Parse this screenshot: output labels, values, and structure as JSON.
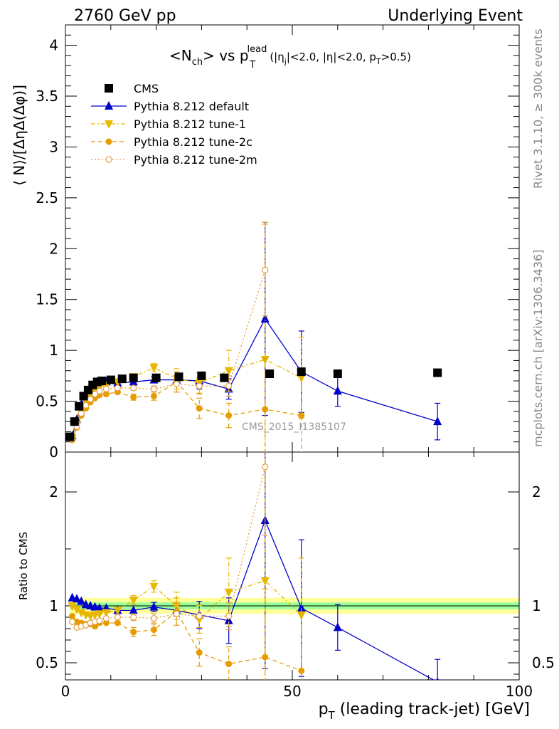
{
  "header": {
    "left": "2760 GeV pp",
    "right": "Underlying Event"
  },
  "top_title": {
    "main": "<N",
    "sub1": "ch",
    "mid": "> vs p",
    "sup": "lead",
    "sub2": "T",
    "cuts": "(|η",
    "cuts_sub1": "j",
    "cuts_mid": "|<2.0, |η|<2.0, p",
    "cuts_sub2": "T",
    "cuts_end": ">0.5)"
  },
  "y_label_main": "⟨ N⟩/[ΔηΔ(Δφ)]",
  "y_label_ratio": "Ratio to CMS",
  "x_label": {
    "main": "p",
    "sub": "T",
    "rest": " (leading track-jet) [GeV]"
  },
  "side_text_top": "Rivet 3.1.10, ≥ 300k events",
  "side_text_bottom": "mcplots.cern.ch [arXiv:1306.3436]",
  "watermark": "CMS_2015_I1385107",
  "legend": [
    "CMS",
    "Pythia 8.212 default",
    "Pythia 8.212 tune-1",
    "Pythia 8.212 tune-2c",
    "Pythia 8.212 tune-2m"
  ],
  "colors": {
    "data": "#000000",
    "default": "#0000cc",
    "tune1": "#e6b800",
    "tune2c": "#e69c00",
    "tune2m": "#e69c3c",
    "band_inner": "#99ff99",
    "band_outer": "#ffff99"
  },
  "chart_data": [
    {
      "type": "scatter",
      "xlim": [
        0,
        100
      ],
      "ylim": [
        0,
        4.2
      ],
      "x_ticks": [
        0,
        50,
        100
      ],
      "y_ticks": [
        0,
        0.5,
        1,
        1.5,
        2,
        2.5,
        3,
        3.5,
        4
      ],
      "y_tick_labels": [
        "0",
        "0.5",
        "1",
        "1.5",
        "2",
        "2.5",
        "3",
        "3.5",
        "4"
      ],
      "series": [
        {
          "name": "CMS",
          "marker": "square",
          "x": [
            1,
            2,
            3,
            4,
            5,
            6,
            7,
            8,
            10,
            12.5,
            15,
            20,
            25,
            30,
            35,
            45,
            52,
            60,
            82
          ],
          "y": [
            0.15,
            0.3,
            0.45,
            0.55,
            0.61,
            0.66,
            0.69,
            0.7,
            0.71,
            0.72,
            0.73,
            0.73,
            0.74,
            0.75,
            0.73,
            0.77,
            0.79,
            0.77,
            0.78
          ]
        },
        {
          "name": "Pythia 8.212 default",
          "marker": "triangle-up",
          "x": [
            1.5,
            2.5,
            3.5,
            4.5,
            5.5,
            6.5,
            7.5,
            9,
            11.5,
            15,
            19.5,
            24.5,
            29.5,
            36,
            44,
            52,
            60,
            82
          ],
          "y": [
            0.16,
            0.32,
            0.47,
            0.55,
            0.62,
            0.66,
            0.68,
            0.69,
            0.68,
            0.69,
            0.71,
            0.71,
            0.7,
            0.62,
            1.31,
            0.79,
            0.6,
            0.3
          ],
          "yerr": [
            0,
            0,
            0,
            0,
            0,
            0,
            0,
            0,
            0,
            0,
            0.03,
            0.03,
            0.08,
            0.1,
            0.95,
            0.4,
            0.15,
            0.18
          ]
        },
        {
          "name": "Pythia 8.212 tune-1",
          "marker": "triangle-down",
          "x": [
            1.5,
            2.5,
            3.5,
            4.5,
            5.5,
            6.5,
            7.5,
            9,
            11.5,
            15,
            19.5,
            24.5,
            29.5,
            36,
            44,
            52
          ],
          "y": [
            0.14,
            0.27,
            0.4,
            0.5,
            0.56,
            0.6,
            0.64,
            0.66,
            0.69,
            0.74,
            0.83,
            0.72,
            0.68,
            0.8,
            0.91,
            0.73
          ],
          "yerr": [
            0,
            0,
            0,
            0,
            0,
            0,
            0,
            0,
            0,
            0.03,
            0.04,
            0.1,
            0.1,
            0.2,
            1.35,
            0.4
          ]
        },
        {
          "name": "Pythia 8.212 tune-2c",
          "marker": "circle",
          "x": [
            1.5,
            2.5,
            3.5,
            4.5,
            5.5,
            6.5,
            7.5,
            9,
            11.5,
            15,
            19.5,
            24.5,
            29.5,
            36,
            44,
            52
          ],
          "y": [
            0.12,
            0.24,
            0.36,
            0.43,
            0.49,
            0.53,
            0.56,
            0.57,
            0.59,
            0.54,
            0.55,
            0.69,
            0.43,
            0.36,
            0.42,
            0.36
          ],
          "yerr": [
            0,
            0,
            0,
            0,
            0,
            0,
            0,
            0,
            0,
            0.03,
            0.04,
            0.1,
            0.1,
            0.12,
            0.5,
            0.4
          ]
        },
        {
          "name": "Pythia 8.212 tune-2m",
          "marker": "circle-open",
          "x": [
            1.5,
            2.5,
            3.5,
            4.5,
            5.5,
            6.5,
            7.5,
            9,
            11.5,
            15,
            19.5,
            24.5,
            29.5,
            36,
            44
          ],
          "y": [
            0.13,
            0.25,
            0.38,
            0.46,
            0.52,
            0.57,
            0.6,
            0.62,
            0.63,
            0.63,
            0.62,
            0.67,
            0.65,
            0.65,
            1.79
          ],
          "yerr": [
            0,
            0,
            0,
            0,
            0,
            0,
            0,
            0,
            0,
            0.02,
            0.03,
            0.08,
            0.08,
            0.1,
            0.45
          ]
        }
      ]
    },
    {
      "type": "scatter",
      "title": "Ratio to CMS",
      "xlim": [
        0,
        100
      ],
      "ylim": [
        0.35,
        2.35
      ],
      "x_ticks": [
        0,
        50,
        100
      ],
      "x_tick_labels": [
        "0",
        "50",
        "100"
      ],
      "y_ticks": [
        0.5,
        1,
        2
      ],
      "y_tick_labels": [
        "0.5",
        "1",
        "2"
      ],
      "band_inner": {
        "x": [
          1,
          100
        ],
        "half_width": 0.03
      },
      "band_outer": {
        "x": [
          1,
          100
        ],
        "half_width": 0.07
      },
      "series": [
        {
          "name": "Pythia 8.212 default",
          "marker": "triangle-up",
          "x": [
            1.5,
            2.5,
            3.5,
            4.5,
            5.5,
            6.5,
            7.5,
            9,
            11.5,
            15,
            19.5,
            24.5,
            29.5,
            36,
            44,
            52,
            60,
            82
          ],
          "y": [
            1.07,
            1.06,
            1.04,
            1.01,
            1.0,
            0.99,
            0.98,
            0.98,
            0.96,
            0.96,
            0.99,
            0.96,
            0.92,
            0.87,
            1.75,
            0.98,
            0.81,
            0.33
          ],
          "yerr": [
            0,
            0,
            0,
            0,
            0,
            0,
            0,
            0,
            0,
            0,
            0.04,
            0.05,
            0.12,
            0.2,
            1.3,
            0.6,
            0.2,
            0.2
          ]
        },
        {
          "name": "Pythia 8.212 tune-1",
          "marker": "triangle-down",
          "x": [
            1.5,
            2.5,
            3.5,
            4.5,
            5.5,
            6.5,
            7.5,
            9,
            11.5,
            15,
            19.5,
            24.5,
            29.5,
            36,
            44,
            52
          ],
          "y": [
            1.0,
            0.97,
            0.94,
            0.92,
            0.91,
            0.92,
            0.93,
            0.94,
            0.96,
            1.05,
            1.17,
            1.0,
            0.88,
            1.12,
            1.22,
            0.92
          ],
          "yerr": [
            0,
            0,
            0,
            0,
            0,
            0,
            0,
            0,
            0,
            0.04,
            0.05,
            0.12,
            0.12,
            0.3,
            1.5,
            0.5
          ]
        },
        {
          "name": "Pythia 8.212 tune-2c",
          "marker": "circle",
          "x": [
            1.5,
            2.5,
            3.5,
            4.5,
            5.5,
            6.5,
            7.5,
            9,
            11.5,
            15,
            19.5,
            24.5,
            29.5,
            36,
            44,
            52
          ],
          "y": [
            0.91,
            0.86,
            0.85,
            0.84,
            0.84,
            0.82,
            0.85,
            0.85,
            0.85,
            0.77,
            0.79,
            0.95,
            0.59,
            0.49,
            0.55,
            0.43
          ],
          "yerr": [
            0,
            0,
            0,
            0,
            0,
            0,
            0,
            0,
            0,
            0.04,
            0.05,
            0.12,
            0.12,
            0.15,
            0.6,
            0.5
          ]
        },
        {
          "name": "Pythia 8.212 tune-2m",
          "marker": "circle-open",
          "x": [
            1.5,
            2.5,
            3.5,
            4.5,
            5.5,
            6.5,
            7.5,
            9,
            11.5,
            15,
            19.5,
            24.5,
            29.5,
            36,
            44
          ],
          "y": [
            0.86,
            0.81,
            0.82,
            0.83,
            0.85,
            0.86,
            0.87,
            0.89,
            0.9,
            0.9,
            0.89,
            0.93,
            0.91,
            0.91,
            2.22
          ],
          "yerr": [
            0,
            0,
            0,
            0,
            0,
            0,
            0,
            0,
            0,
            0.03,
            0.04,
            0.1,
            0.1,
            0.12,
            0.6
          ]
        }
      ]
    }
  ]
}
